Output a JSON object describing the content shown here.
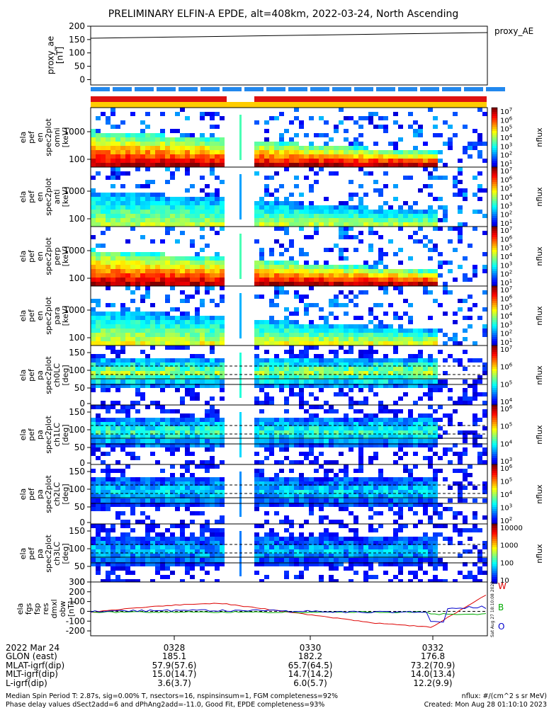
{
  "title": "PRELIMINARY ELFIN-A EPDE, alt=408km, 2022-03-24, North Ascending",
  "proxy_ae": {
    "ylabel": [
      "proxy_ae",
      "[nT]"
    ],
    "yticks": [
      "200",
      "150",
      "100",
      "50",
      "0"
    ],
    "legend": "proxy_AE",
    "values": [
      155,
      176
    ]
  },
  "spectro_energy": [
    {
      "ylabel": [
        "ela",
        "pef",
        "en",
        "spec2plot",
        "omni",
        "[keV]"
      ],
      "yticks": [
        "1000",
        "100"
      ]
    },
    {
      "ylabel": [
        "ela",
        "pef",
        "en",
        "spec2plot",
        "anti",
        "[keV]"
      ],
      "yticks": [
        "1000",
        "100"
      ]
    },
    {
      "ylabel": [
        "ela",
        "pef",
        "en",
        "spec2plot",
        "perp",
        "[keV]"
      ],
      "yticks": [
        "1000",
        "100"
      ]
    },
    {
      "ylabel": [
        "ela",
        "pef",
        "en",
        "spec2plot",
        "para",
        "[keV]"
      ],
      "yticks": [
        "1000",
        "100"
      ]
    }
  ],
  "spectro_pitch": [
    {
      "ylabel": [
        "ela",
        "pef",
        "pa",
        "spec2plot",
        "ch0LC",
        "[deg]"
      ],
      "yticks": [
        "150",
        "100",
        "50",
        "0"
      ]
    },
    {
      "ylabel": [
        "ela",
        "pef",
        "pa",
        "spec2plot",
        "ch1LC",
        "[deg]"
      ],
      "yticks": [
        "150",
        "100",
        "50",
        "0"
      ]
    },
    {
      "ylabel": [
        "ela",
        "pef",
        "pa",
        "spec2plot",
        "ch2LC",
        "[deg]"
      ],
      "yticks": [
        "150",
        "100",
        "50",
        "0"
      ]
    },
    {
      "ylabel": [
        "ela",
        "pef",
        "pa",
        "spec2plot",
        "ch3LC",
        "[deg]"
      ],
      "yticks": [
        "150",
        "100",
        "50",
        "0"
      ]
    }
  ],
  "colorbars": [
    {
      "label": "nflux",
      "ticks": [
        "10^7",
        "10^6",
        "10^5",
        "10^4",
        "10^3",
        "10^2",
        "10^1"
      ]
    },
    {
      "label": "nflux",
      "ticks": [
        "10^7",
        "10^6",
        "10^5",
        "10^4",
        "10^3",
        "10^2",
        "10^1"
      ]
    },
    {
      "label": "nflux",
      "ticks": [
        "10^7",
        "10^6",
        "10^5",
        "10^4",
        "10^3",
        "10^2",
        "10^1"
      ]
    },
    {
      "label": "nflux",
      "ticks": [
        "10^7",
        "10^6",
        "10^5",
        "10^4",
        "10^3",
        "10^2",
        "10^1"
      ]
    },
    {
      "label": "nflux",
      "ticks": [
        "10^7",
        "10^6",
        "10^5",
        "10^4"
      ]
    },
    {
      "label": "nflux",
      "ticks": [
        "10^6",
        "10^5",
        "10^4",
        "10^3"
      ]
    },
    {
      "label": "nflux",
      "ticks": [
        "10^6",
        "10^5",
        "10^4",
        "10^3",
        "10^2"
      ]
    },
    {
      "label": "nflux",
      "ticks": [
        "10000",
        "1000",
        "100",
        "10"
      ]
    }
  ],
  "fgs": {
    "ylabel": [
      "ela",
      "fgs",
      "fsp",
      "res",
      "dmxl",
      "obw",
      "[nT]"
    ],
    "yticks": [
      "300",
      "200",
      "100",
      "0",
      "-100",
      "-200"
    ],
    "legend": [
      "W",
      "B",
      "O"
    ],
    "legend_colors": [
      "#dd0000",
      "#00aa00",
      "#0000cc"
    ],
    "stamp": "Sat Aug 27 18:10:08 2022"
  },
  "xaxis": {
    "row_labels": [
      "2022 Mar 24",
      "GLON (east)",
      "MLAT-igrf(dip)",
      "MLT-igrf(dip)",
      "L-igrf(dip)"
    ],
    "columns": [
      {
        "time": "0328",
        "values": [
          "185.1",
          "57.9(57.6)",
          "15.0(14.7)",
          "3.6(3.7)"
        ]
      },
      {
        "time": "0330",
        "values": [
          "182.2",
          "65.7(64.5)",
          "14.7(14.2)",
          "6.0(5.7)"
        ]
      },
      {
        "time": "0332",
        "values": [
          "176.8",
          "73.2(70.9)",
          "14.0(13.4)",
          "12.2(9.9)"
        ]
      }
    ]
  },
  "footer": {
    "line1_left": "Median Spin Period T: 2.87s, sig=0.00% T, nsectors=16, nspinsinsum=1, FGM completeness=92%",
    "line2_left": "Phase delay values dSect2add=6 and dPhAng2add=-11.0, Good Fit, EPDE completeness=93%",
    "line1_right": "nflux: #/(cm^2 s sr MeV)",
    "line2_right": "Created: Mon Aug 28 01:10:10 2023"
  },
  "colors": {
    "bar_blue": "#2288ee",
    "bar_red": "#dd1111",
    "bar_yellow": "#ffcc00",
    "trace_w": "#dd0000",
    "trace_b": "#00aa00",
    "trace_o": "#0000cc"
  }
}
